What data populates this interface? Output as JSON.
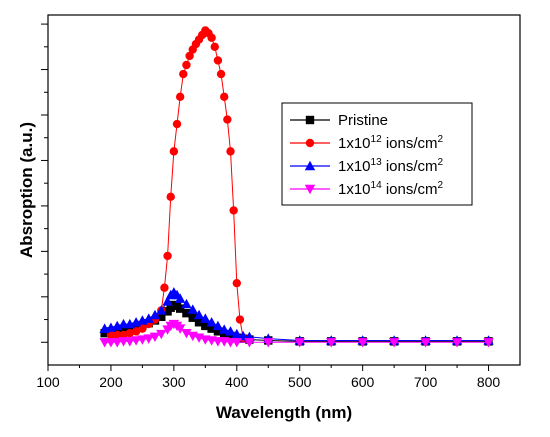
{
  "chart_data": {
    "type": "line",
    "title": "",
    "xlabel": "Wavelength (nm)",
    "ylabel": "Absroption (a.u.)",
    "xlim": [
      100,
      850
    ],
    "ylim": [
      -0.25,
      3.6
    ],
    "xticks": [
      100,
      200,
      300,
      400,
      500,
      600,
      700,
      800
    ],
    "xtick_labels": [
      "100",
      "200",
      "300",
      "400",
      "500",
      "600",
      "700",
      "800"
    ],
    "y_tick_labels_shown": false,
    "y_major_ticks": [
      0,
      0.5,
      1,
      1.5,
      2,
      2.5,
      3,
      3.5
    ],
    "y_minor_ticks": [
      0.25,
      0.75,
      1.25,
      1.75,
      2.25,
      2.75,
      3.25
    ],
    "legend_position": "right",
    "series": [
      {
        "name": "Pristine",
        "name_base": "Pristine",
        "name_sup": "",
        "name_tail": "",
        "color": "#000000",
        "marker": "square",
        "x": [
          190,
          200,
          210,
          220,
          230,
          240,
          250,
          260,
          270,
          280,
          290,
          295,
          300,
          305,
          310,
          320,
          330,
          340,
          350,
          360,
          370,
          380,
          390,
          400,
          410,
          420,
          450,
          500,
          550,
          600,
          650,
          700,
          750,
          800
        ],
        "y": [
          0.1,
          0.12,
          0.13,
          0.15,
          0.15,
          0.17,
          0.19,
          0.21,
          0.24,
          0.28,
          0.34,
          0.38,
          0.41,
          0.4,
          0.37,
          0.32,
          0.27,
          0.22,
          0.18,
          0.15,
          0.12,
          0.09,
          0.07,
          0.05,
          0.04,
          0.03,
          0.02,
          0.01,
          0.01,
          0.01,
          0.01,
          0.01,
          0.01,
          0.01
        ]
      },
      {
        "name": "1x10^12 ions/cm^2",
        "name_base": "1x10",
        "name_sup": "12",
        "name_tail": " ions/cm",
        "name_tail_sup": "2",
        "color": "#ff0000",
        "marker": "circle",
        "x": [
          200,
          210,
          220,
          230,
          240,
          250,
          260,
          270,
          280,
          285,
          290,
          295,
          300,
          305,
          310,
          315,
          320,
          325,
          330,
          335,
          340,
          345,
          350,
          355,
          360,
          365,
          370,
          375,
          380,
          385,
          390,
          395,
          400,
          405,
          410
        ],
        "y": [
          0.08,
          0.08,
          0.08,
          0.1,
          0.12,
          0.15,
          0.2,
          0.25,
          0.35,
          0.6,
          0.95,
          1.6,
          2.1,
          2.4,
          2.7,
          2.95,
          3.05,
          3.15,
          3.22,
          3.28,
          3.33,
          3.38,
          3.43,
          3.4,
          3.35,
          3.25,
          3.1,
          2.95,
          2.7,
          2.45,
          2.1,
          1.45,
          0.65,
          0.25,
          0.05
        ]
      },
      {
        "name": "1x10^13 ions/cm^2",
        "name_base": "1x10",
        "name_sup": "13",
        "name_tail": " ions/cm",
        "name_tail_sup": "2",
        "color": "#0000ff",
        "marker": "triangle-up",
        "x": [
          190,
          200,
          210,
          220,
          230,
          240,
          250,
          260,
          270,
          280,
          290,
          295,
          300,
          305,
          310,
          320,
          330,
          340,
          350,
          360,
          370,
          380,
          390,
          400,
          410,
          420,
          450,
          500,
          550,
          600,
          650,
          700,
          750,
          800
        ],
        "y": [
          0.15,
          0.16,
          0.18,
          0.2,
          0.2,
          0.22,
          0.24,
          0.26,
          0.3,
          0.35,
          0.45,
          0.52,
          0.55,
          0.52,
          0.48,
          0.42,
          0.36,
          0.3,
          0.26,
          0.22,
          0.18,
          0.14,
          0.12,
          0.09,
          0.07,
          0.06,
          0.04,
          0.02,
          0.02,
          0.02,
          0.02,
          0.02,
          0.02,
          0.02
        ]
      },
      {
        "name": "1x10^14 ions/cm^2",
        "name_base": "1x10",
        "name_sup": "14",
        "name_tail": " ions/cm",
        "name_tail_sup": "2",
        "color": "#ff00ff",
        "marker": "triangle-down",
        "x": [
          190,
          200,
          210,
          220,
          230,
          240,
          250,
          260,
          270,
          280,
          290,
          295,
          300,
          305,
          310,
          320,
          330,
          340,
          350,
          360,
          370,
          380,
          390,
          400,
          420,
          450,
          500,
          550,
          600,
          650,
          700,
          750,
          800
        ],
        "y": [
          0.0,
          0.0,
          0.0,
          0.01,
          0.01,
          0.02,
          0.03,
          0.04,
          0.06,
          0.09,
          0.14,
          0.18,
          0.2,
          0.18,
          0.15,
          0.1,
          0.07,
          0.05,
          0.03,
          0.02,
          0.01,
          0.01,
          0.0,
          0.0,
          0.0,
          0.0,
          0.0,
          0.0,
          0.0,
          0.0,
          0.0,
          0.0,
          0.0
        ]
      }
    ]
  }
}
